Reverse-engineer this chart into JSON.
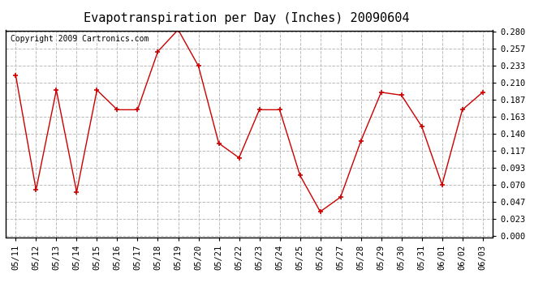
{
  "title": "Evapotranspiration per Day (Inches) 20090604",
  "copyright": "Copyright 2009 Cartronics.com",
  "x_labels": [
    "05/11",
    "05/12",
    "05/13",
    "05/14",
    "05/15",
    "05/16",
    "05/17",
    "05/18",
    "05/19",
    "05/20",
    "05/21",
    "05/22",
    "05/23",
    "05/24",
    "05/25",
    "05/26",
    "05/27",
    "05/28",
    "05/29",
    "05/30",
    "05/31",
    "06/01",
    "06/02",
    "06/03"
  ],
  "y_values": [
    0.22,
    0.063,
    0.2,
    0.06,
    0.2,
    0.173,
    0.173,
    0.253,
    0.283,
    0.233,
    0.127,
    0.107,
    0.173,
    0.173,
    0.083,
    0.033,
    0.053,
    0.13,
    0.197,
    0.193,
    0.15,
    0.07,
    0.173,
    0.197
  ],
  "line_color": "#cc0000",
  "marker": "+",
  "marker_size": 5,
  "marker_color": "#cc0000",
  "background_color": "#ffffff",
  "plot_bg_color": "#ffffff",
  "grid_color": "#bbbbbb",
  "grid_style": "--",
  "y_min": 0.0,
  "y_max": 0.28,
  "y_ticks": [
    0.0,
    0.023,
    0.047,
    0.07,
    0.093,
    0.117,
    0.14,
    0.163,
    0.187,
    0.21,
    0.233,
    0.257,
    0.28
  ],
  "title_fontsize": 11,
  "tick_fontsize": 7.5,
  "copyright_fontsize": 7
}
